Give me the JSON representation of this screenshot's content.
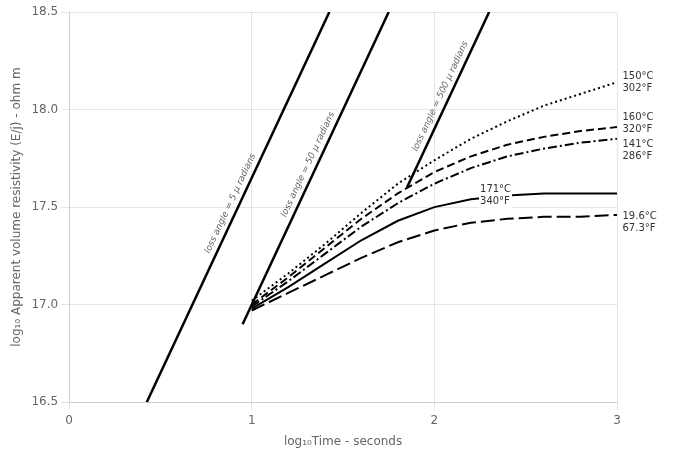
{
  "chart_data": {
    "type": "line",
    "xlabel": "log₁₀Time - seconds",
    "ylabel": "log₁₀ Apparent volume resistivity (E/j) - ohm m",
    "xlim": [
      0,
      3
    ],
    "ylim": [
      16.5,
      18.5
    ],
    "xticks": [
      0,
      1,
      2,
      3
    ],
    "yticks": [
      16.5,
      {
        "value": 17,
        "label": "17.0"
      },
      17.5,
      {
        "value": 18,
        "label": "18.0"
      },
      18.5
    ],
    "grid": true,
    "series": [
      {
        "name": "loss angle = 5 μ radians",
        "color": "#000000",
        "line_style": "solid",
        "x": [
          0.425,
          1.425
        ],
        "y": [
          16.5,
          18.5
        ]
      },
      {
        "name": "loss angle = 50 μ radians",
        "color": "#000000",
        "line_style": "solid",
        "x": [
          0.95,
          1.75
        ],
        "y": [
          16.9,
          18.5
        ]
      },
      {
        "name": "loss angle = 500 μ radians",
        "color": "#000000",
        "line_style": "solid",
        "x": [
          1.85,
          2.3
        ],
        "y": [
          17.6,
          18.5
        ]
      },
      {
        "color": "#000000",
        "line_style": "dotted",
        "x": [
          1.0,
          1.2,
          1.4,
          1.6,
          1.8,
          2.0,
          2.2,
          2.4,
          2.6,
          2.8,
          3.0
        ],
        "y": [
          17.02,
          17.16,
          17.31,
          17.47,
          17.62,
          17.74,
          17.85,
          17.94,
          18.02,
          18.08,
          18.14
        ]
      },
      {
        "color": "#000000",
        "line_style": "dashed",
        "x": [
          1.0,
          1.2,
          1.4,
          1.6,
          1.8,
          2.0,
          2.2,
          2.4,
          2.6,
          2.8,
          3.0
        ],
        "y": [
          17.0,
          17.14,
          17.29,
          17.44,
          17.57,
          17.68,
          17.76,
          17.82,
          17.86,
          17.89,
          17.91
        ]
      },
      {
        "color": "#000000",
        "line_style": "dashdot",
        "x": [
          1.0,
          1.2,
          1.4,
          1.6,
          1.8,
          2.0,
          2.2,
          2.4,
          2.6,
          2.8,
          3.0
        ],
        "y": [
          16.99,
          17.12,
          17.26,
          17.4,
          17.52,
          17.62,
          17.7,
          17.76,
          17.8,
          17.83,
          17.85
        ]
      },
      {
        "color": "#000000",
        "line_style": "solid",
        "x": [
          1.0,
          1.2,
          1.4,
          1.6,
          1.8,
          2.0,
          2.2,
          2.4,
          2.6,
          2.8,
          3.0
        ],
        "y": [
          16.98,
          17.09,
          17.21,
          17.33,
          17.43,
          17.5,
          17.54,
          17.56,
          17.57,
          17.57,
          17.57
        ]
      },
      {
        "color": "#000000",
        "line_style": "longdashed",
        "x": [
          1.0,
          1.2,
          1.4,
          1.6,
          1.8,
          2.0,
          2.2,
          2.4,
          2.6,
          2.8,
          3.0
        ],
        "y": [
          16.97,
          17.06,
          17.15,
          17.24,
          17.32,
          17.38,
          17.42,
          17.44,
          17.45,
          17.45,
          17.46
        ]
      }
    ],
    "annotations": [
      {
        "text": "150°C\n302°F",
        "x": 3.03,
        "y": 18.14
      },
      {
        "text": "160°C\n320°F",
        "x": 3.03,
        "y": 17.93
      },
      {
        "text": "141°C\n286°F",
        "x": 3.03,
        "y": 17.79
      },
      {
        "text": "171°C\n340°F",
        "x": 2.25,
        "y": 17.56
      },
      {
        "text": "19.6°C\n67.3°F",
        "x": 3.03,
        "y": 17.42
      }
    ]
  }
}
